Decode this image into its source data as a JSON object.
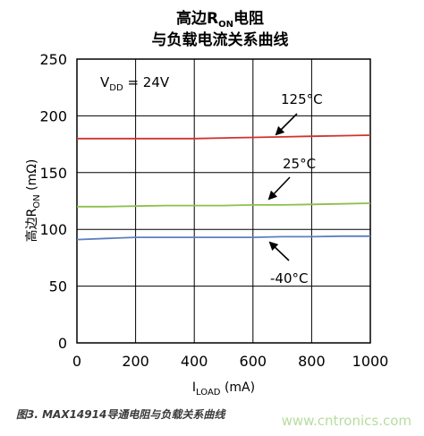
{
  "chart_data": {
    "type": "line",
    "title_line1": {
      "pre": "高边R",
      "sub": "ON",
      "post": "电阻"
    },
    "title_line2": "与负载电流关系曲线",
    "xlabel": {
      "main": "I",
      "sub": "LOAD",
      "unit": " (mA)"
    },
    "ylabel": {
      "main": "高边R",
      "sub": "ON",
      "unit": " (mΩ)"
    },
    "xlim": [
      0,
      1000
    ],
    "ylim": [
      0,
      250
    ],
    "x_ticks": [
      "0",
      "200",
      "400",
      "600",
      "800",
      "1000"
    ],
    "y_ticks": [
      "0",
      "50",
      "100",
      "150",
      "200",
      "250"
    ],
    "grid": true,
    "annotation_vdd": {
      "pre": "V",
      "sub": "DD",
      "post": " = 24V"
    },
    "series": [
      {
        "name": "125°C",
        "color": "#d0332f",
        "x": [
          0,
          100,
          200,
          300,
          400,
          500,
          600,
          700,
          800,
          900,
          1000
        ],
        "y": [
          180,
          180,
          180,
          180,
          180,
          180.5,
          181,
          181.5,
          182,
          182.5,
          183
        ]
      },
      {
        "name": "25°C",
        "color": "#8cc04c",
        "x": [
          0,
          100,
          200,
          300,
          400,
          500,
          600,
          700,
          800,
          900,
          1000
        ],
        "y": [
          120,
          120,
          120.5,
          121,
          121,
          121,
          121.5,
          121.5,
          122,
          122.5,
          123
        ]
      },
      {
        "name": "-40°C",
        "color": "#5b7fbf",
        "x": [
          0,
          100,
          200,
          300,
          400,
          500,
          600,
          700,
          800,
          900,
          1000
        ],
        "y": [
          91,
          92,
          93,
          93,
          93,
          93,
          93,
          93.5,
          93.5,
          94,
          94
        ]
      }
    ],
    "labels": {
      "s125": "125°C",
      "s25": "25°C",
      "sm40": "-40°C"
    }
  },
  "caption": "图3. MAX14914导通电阻与负载关系曲线",
  "watermark": "www.cntronics.com"
}
